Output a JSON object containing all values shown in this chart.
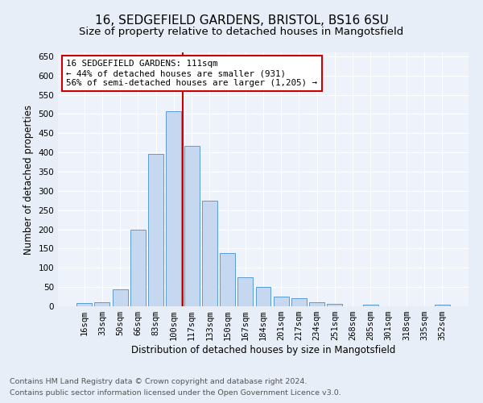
{
  "title": "16, SEDGEFIELD GARDENS, BRISTOL, BS16 6SU",
  "subtitle": "Size of property relative to detached houses in Mangotsfield",
  "xlabel": "Distribution of detached houses by size in Mangotsfield",
  "ylabel": "Number of detached properties",
  "footnote1": "Contains HM Land Registry data © Crown copyright and database right 2024.",
  "footnote2": "Contains public sector information licensed under the Open Government Licence v3.0.",
  "categories": [
    "16sqm",
    "33sqm",
    "50sqm",
    "66sqm",
    "83sqm",
    "100sqm",
    "117sqm",
    "133sqm",
    "150sqm",
    "167sqm",
    "184sqm",
    "201sqm",
    "217sqm",
    "234sqm",
    "251sqm",
    "268sqm",
    "285sqm",
    "301sqm",
    "318sqm",
    "335sqm",
    "352sqm"
  ],
  "values": [
    8,
    10,
    45,
    200,
    397,
    507,
    418,
    275,
    138,
    75,
    50,
    25,
    20,
    10,
    7,
    0,
    5,
    0,
    0,
    0,
    4
  ],
  "bar_color": "#c5d8f0",
  "bar_edge_color": "#5b9bd5",
  "vline_color": "#cc0000",
  "annotation_box_color": "#cc0000",
  "annotation_text_line1": "16 SEDGEFIELD GARDENS: 111sqm",
  "annotation_text_line2": "← 44% of detached houses are smaller (931)",
  "annotation_text_line3": "56% of semi-detached houses are larger (1,205) →",
  "ylim": [
    0,
    660
  ],
  "yticks": [
    0,
    50,
    100,
    150,
    200,
    250,
    300,
    350,
    400,
    450,
    500,
    550,
    600,
    650
  ],
  "bg_color": "#e8eef7",
  "plot_bg_color": "#eef2fa",
  "grid_color": "#ffffff",
  "title_fontsize": 11,
  "subtitle_fontsize": 9.5,
  "axis_label_fontsize": 8.5,
  "tick_fontsize": 7.5,
  "annotation_fontsize": 7.8,
  "footnote_fontsize": 6.8,
  "vline_position": 5.5
}
